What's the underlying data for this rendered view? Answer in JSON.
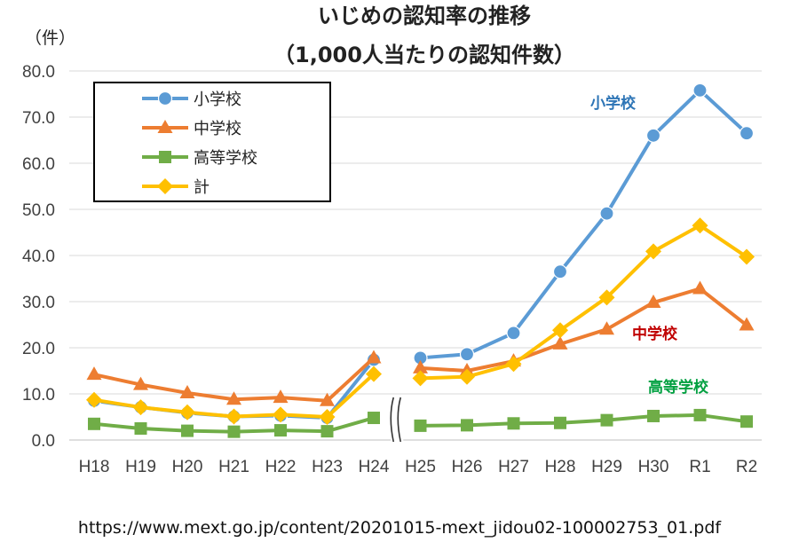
{
  "chart_data": {
    "type": "line",
    "title_line1": "いじめの認知率の推移",
    "title_line2": "（1,000人当たりの認知件数）",
    "ylabel": "（件）",
    "ylim": [
      0,
      80
    ],
    "yticks": [
      "0.0",
      "10.0",
      "20.0",
      "30.0",
      "40.0",
      "50.0",
      "60.0",
      "70.0",
      "80.0"
    ],
    "grid": true,
    "legend_position": "top-left",
    "axis_break_between": [
      "H24",
      "H25"
    ],
    "categories": [
      "H18",
      "H19",
      "H20",
      "H21",
      "H22",
      "H23",
      "H24",
      "H25",
      "H26",
      "H27",
      "H28",
      "H29",
      "H30",
      "R1",
      "R2"
    ],
    "series": [
      {
        "name": "小学校",
        "color": "#5B9BD5",
        "marker": "circle",
        "values": [
          8.5,
          7.1,
          5.9,
          5.1,
          5.3,
          4.8,
          17.4,
          17.8,
          18.6,
          23.2,
          36.5,
          49.1,
          66.0,
          75.8,
          66.5
        ]
      },
      {
        "name": "中学校",
        "color": "#ED7D31",
        "marker": "triangle",
        "values": [
          14.2,
          12.0,
          10.2,
          8.8,
          9.2,
          8.5,
          17.8,
          15.6,
          15.0,
          17.1,
          20.8,
          24.0,
          29.8,
          32.8,
          24.9
        ]
      },
      {
        "name": "高等学校",
        "color": "#70AD47",
        "marker": "square",
        "values": [
          3.5,
          2.5,
          2.0,
          1.8,
          2.1,
          1.9,
          4.8,
          3.1,
          3.2,
          3.6,
          3.7,
          4.3,
          5.2,
          5.4,
          4.0
        ]
      },
      {
        "name": "計",
        "color": "#FFC000",
        "marker": "diamond",
        "values": [
          8.7,
          7.1,
          6.0,
          5.1,
          5.5,
          5.0,
          14.3,
          13.4,
          13.7,
          16.5,
          23.8,
          30.9,
          40.9,
          46.5,
          39.7
        ]
      }
    ],
    "annotations": [
      {
        "text": "小学校",
        "color": "#2E75B6"
      },
      {
        "text": "中学校",
        "color": "#C00000"
      },
      {
        "text": "高等学校",
        "color": "#00A040"
      }
    ]
  },
  "source_text": "https://www.mext.go.jp/content/20201015-mext_jidou02-100002753_01.pdf"
}
